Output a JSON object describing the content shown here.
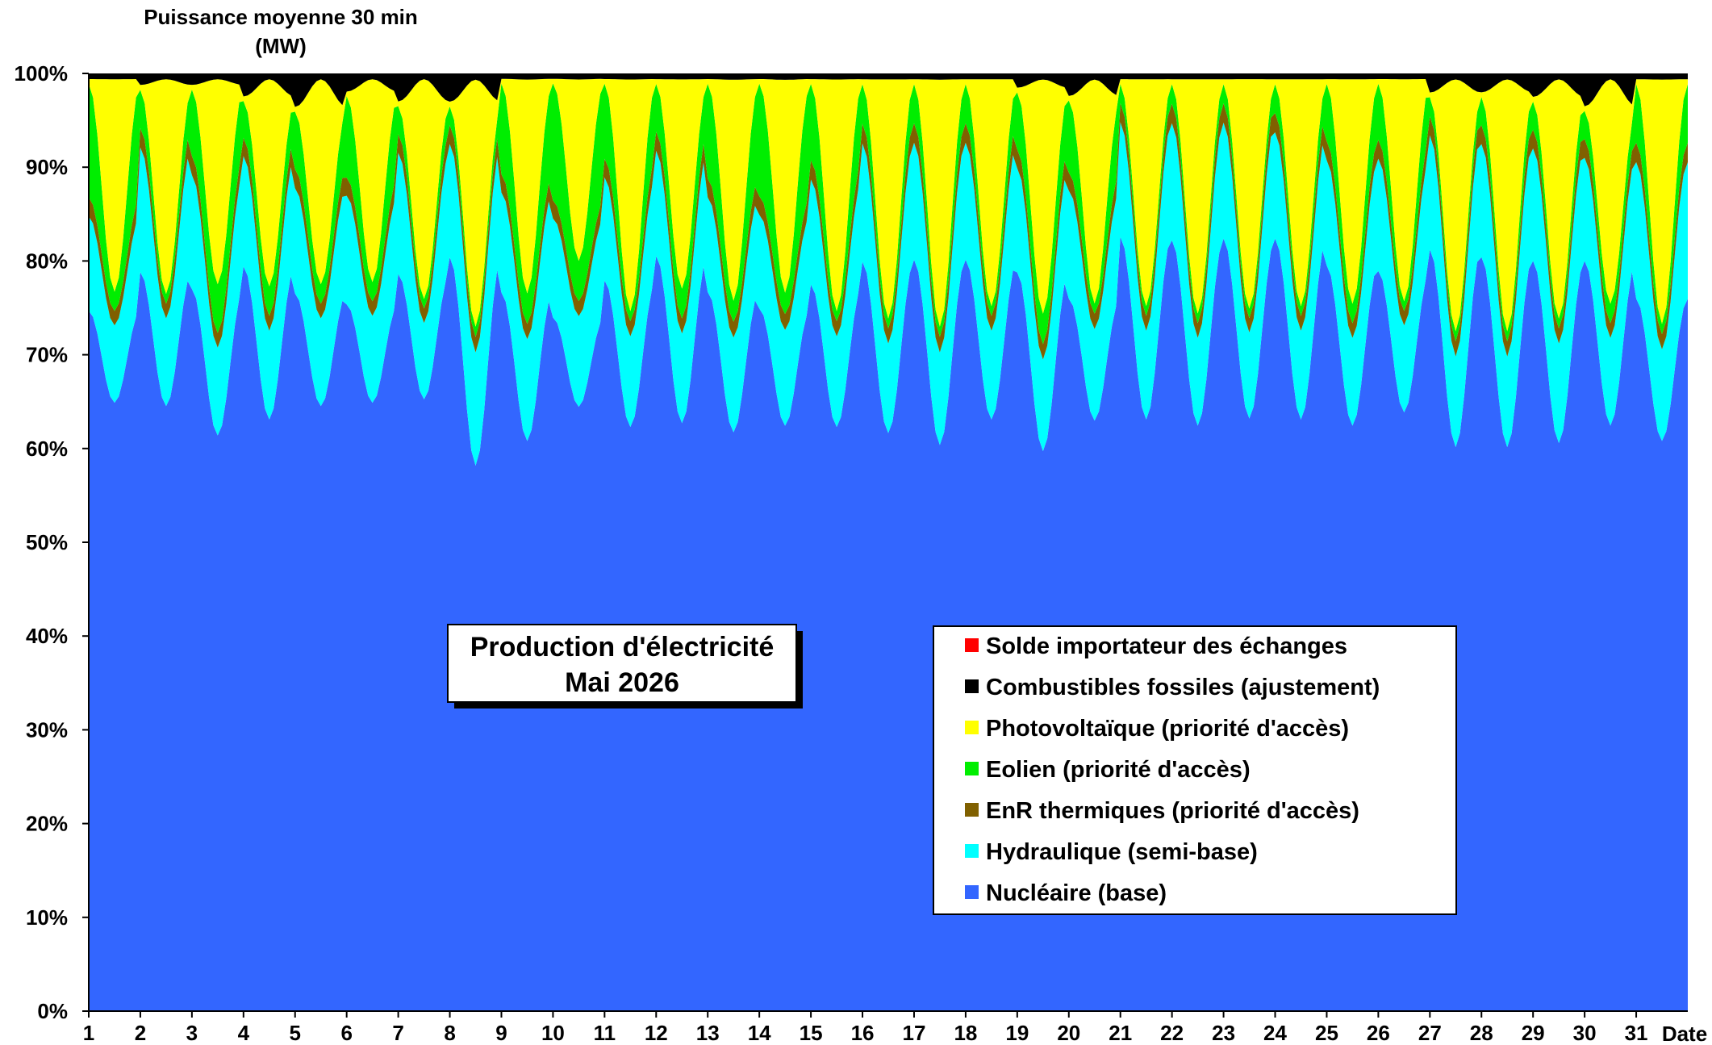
{
  "chart_data": {
    "type": "area",
    "stacked": true,
    "normalized": true,
    "title": "Production d'électricité",
    "subtitle": "Mai 2026",
    "ylabel": "Puissance moyenne 30 min",
    "ylabel_unit": "(MW)",
    "xlabel": "Date",
    "ylim": [
      0,
      100
    ],
    "y_ticks": [
      "0%",
      "10%",
      "20%",
      "30%",
      "40%",
      "50%",
      "60%",
      "70%",
      "80%",
      "90%",
      "100%"
    ],
    "x_ticks": [
      "1",
      "2",
      "3",
      "4",
      "5",
      "6",
      "7",
      "8",
      "9",
      "10",
      "11",
      "12",
      "13",
      "14",
      "15",
      "16",
      "17",
      "18",
      "19",
      "20",
      "21",
      "22",
      "23",
      "24",
      "25",
      "26",
      "27",
      "28",
      "29",
      "30",
      "31"
    ],
    "legend_position": "center-right",
    "legend_order": [
      "Solde importateur des échanges",
      "Combustibles fossiles (ajustement)",
      "Photovoltaïque (priorité d'accès)",
      "Eolien (priorité d'accès)",
      "EnR thermiques (priorité d'accès)",
      "Hydraulique (semi-base)",
      "Nucléaire (base)"
    ],
    "series": [
      {
        "name": "Nucléaire (base)",
        "color": "#3366FF",
        "day_min": [
          63,
          62,
          59,
          60,
          62,
          63,
          64,
          53,
          56,
          60,
          58,
          59,
          55,
          55,
          58,
          58,
          55,
          60,
          55,
          58,
          60,
          60,
          62,
          60,
          60,
          62,
          56,
          56,
          57,
          60,
          56
        ],
        "night_max": [
          74,
          77,
          76,
          81,
          75,
          78,
          79,
          80,
          79,
          77,
          78,
          79,
          76,
          75,
          76,
          76,
          77,
          77,
          78,
          79,
          81,
          79,
          80,
          80,
          78,
          79,
          80,
          80,
          80,
          80,
          73
        ]
      },
      {
        "name": "Hydraulique (semi-base)",
        "color": "#00FFFF",
        "day_min": [
          8,
          9,
          9,
          9,
          9,
          9,
          8,
          11,
          10,
          9,
          9,
          9,
          9,
          9,
          9,
          9,
          9,
          9,
          9,
          9,
          9,
          9,
          9,
          9,
          9,
          9,
          9,
          9,
          10,
          9,
          9
        ],
        "night_max": [
          10,
          13,
          12,
          12,
          11,
          12,
          13,
          12,
          11,
          11,
          11,
          11,
          10,
          10,
          11,
          12,
          12,
          12,
          11,
          12,
          12,
          12,
          12,
          11,
          11,
          12,
          12,
          12,
          12,
          11,
          14
        ]
      },
      {
        "name": "EnR thermiques (priorité d'accès)",
        "color": "#806000",
        "day_min": [
          1.5,
          1.5,
          1.5,
          1.5,
          1.5,
          1.5,
          1.5,
          1.5,
          1.5,
          1.5,
          1.5,
          1.5,
          1.5,
          1.5,
          1.5,
          1.5,
          1.5,
          1.5,
          1.5,
          1.5,
          1.5,
          1.5,
          1.5,
          1.5,
          1.5,
          1.5,
          1.5,
          1.5,
          1.5,
          1.5,
          1.5
        ],
        "night_max": [
          2,
          2,
          2,
          2,
          2,
          2,
          2,
          2,
          2,
          2,
          2,
          2,
          2,
          2,
          2,
          2,
          2,
          2,
          2,
          2,
          2,
          2,
          2,
          2,
          2,
          2,
          2,
          2,
          2,
          2,
          2
        ]
      },
      {
        "name": "Eolien (priorité d'accès)",
        "color": "#00EE00",
        "day_min": [
          2,
          1,
          5,
          3,
          2,
          2,
          1,
          1,
          3,
          4,
          1,
          3,
          2,
          2,
          1,
          1,
          1,
          1,
          3,
          1,
          1,
          1,
          1,
          1,
          2,
          1,
          1,
          1,
          1,
          2,
          1
        ],
        "night_max": [
          12,
          4,
          7,
          4,
          6,
          9,
          3,
          2,
          10,
          13,
          8,
          5,
          10,
          12,
          8,
          4,
          4,
          4,
          6,
          8,
          2,
          2,
          2,
          3,
          6,
          6,
          2,
          3,
          3,
          3,
          6
        ]
      },
      {
        "name": "Photovoltaïque (priorité d'accès)",
        "color": "#FFFF00",
        "day_min": [
          22,
          22,
          21,
          21,
          21,
          21,
          23,
          24,
          21,
          18,
          23,
          21,
          21,
          20,
          23,
          24,
          24,
          23,
          23,
          22,
          23,
          24,
          24,
          23,
          23,
          23,
          25,
          25,
          24,
          23,
          24
        ],
        "night_max": [
          0.5,
          0.5,
          0.5,
          0.5,
          0.5,
          0.5,
          0.5,
          0.5,
          0.5,
          0.5,
          0.5,
          0.5,
          0.5,
          0.5,
          0.5,
          0.5,
          0.5,
          0.5,
          0.5,
          0.5,
          0.5,
          0.5,
          0.5,
          0.5,
          0.5,
          0.5,
          0.5,
          0.5,
          0.5,
          0.5,
          0.5
        ]
      },
      {
        "name": "Combustibles fossiles (ajustement)",
        "color": "#000000",
        "day_min": [
          0.6,
          0.6,
          0.6,
          0.6,
          0.6,
          0.6,
          0.6,
          0.6,
          0.6,
          0.6,
          0.6,
          0.6,
          0.6,
          0.6,
          0.6,
          0.6,
          0.6,
          0.6,
          0.6,
          0.6,
          0.6,
          0.6,
          0.6,
          0.6,
          0.6,
          0.6,
          0.6,
          0.6,
          0.6,
          0.6,
          0.6
        ],
        "night_max": [
          0.6,
          1.2,
          1.2,
          2.5,
          3.5,
          2,
          3,
          3,
          0.6,
          0.6,
          0.6,
          0.6,
          0.6,
          0.6,
          0.6,
          0.6,
          0.6,
          0.6,
          1.5,
          2.5,
          0.6,
          0.6,
          0.6,
          0.6,
          0.6,
          0.6,
          2,
          2,
          2.5,
          3.5,
          0.6
        ]
      },
      {
        "name": "Solde importateur des échanges",
        "color": "#FF0000",
        "day_min": [
          0,
          0,
          0,
          0,
          0,
          0,
          0,
          0,
          0,
          0,
          0,
          0,
          0,
          0,
          0,
          0,
          0,
          0,
          0,
          0,
          0,
          0,
          0,
          0,
          0,
          0,
          0,
          0,
          0,
          0,
          0
        ],
        "night_max": [
          0,
          0,
          0,
          0,
          0,
          0,
          0,
          0,
          0,
          0,
          0,
          0,
          0,
          0,
          0,
          0,
          0,
          0,
          0,
          0,
          0,
          0,
          0,
          0,
          0,
          0,
          0,
          0,
          0,
          0,
          0
        ]
      }
    ]
  }
}
